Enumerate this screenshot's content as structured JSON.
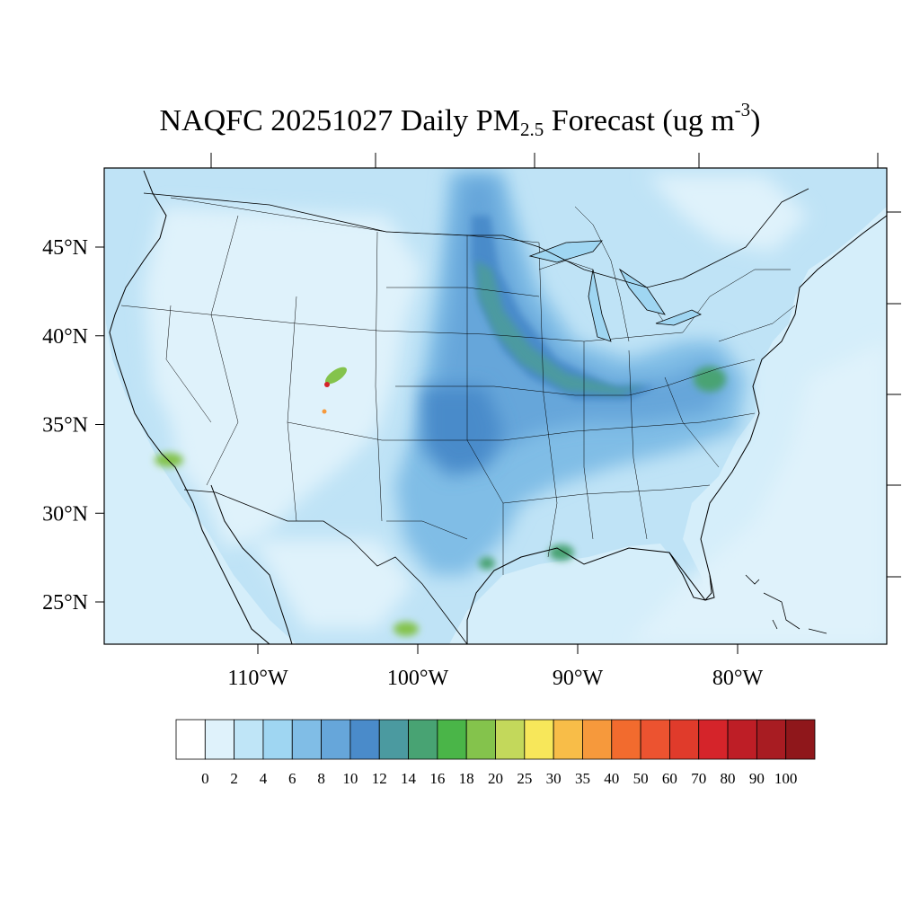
{
  "title": {
    "prefix": "NAQFC 20251027 Daily PM",
    "sub": "2.5",
    "middle": " Forecast (ug m",
    "sup": "-3",
    "suffix": ")"
  },
  "map": {
    "lat_ticks": [
      {
        "value": 45,
        "label": "45°N"
      },
      {
        "value": 40,
        "label": "40°N"
      },
      {
        "value": 35,
        "label": "35°N"
      },
      {
        "value": 30,
        "label": "30°N"
      },
      {
        "value": 25,
        "label": "25°N"
      }
    ],
    "lon_ticks": [
      {
        "value": -110,
        "label": "110°W"
      },
      {
        "value": -100,
        "label": "100°W"
      },
      {
        "value": -90,
        "label": "90°W"
      },
      {
        "value": -80,
        "label": "80°W"
      }
    ],
    "ocean_color": "#d5eefa",
    "land_base_color": "#bfe3f6"
  },
  "colorbar": {
    "labels": [
      "0",
      "2",
      "4",
      "6",
      "8",
      "10",
      "12",
      "14",
      "16",
      "18",
      "20",
      "25",
      "30",
      "35",
      "40",
      "50",
      "60",
      "70",
      "80",
      "90",
      "100"
    ],
    "colors": [
      "#ffffff",
      "#dff2fb",
      "#bfe5f7",
      "#9fd6f2",
      "#80bde6",
      "#66a6da",
      "#4a8bca",
      "#4b9aa0",
      "#48a373",
      "#4ab548",
      "#84c34c",
      "#c3d85b",
      "#f7e75a",
      "#f8bd48",
      "#f6993c",
      "#f26b2e",
      "#ec5330",
      "#e03b2b",
      "#d5242a",
      "#be1e26",
      "#a81c22",
      "#8f171b"
    ]
  }
}
